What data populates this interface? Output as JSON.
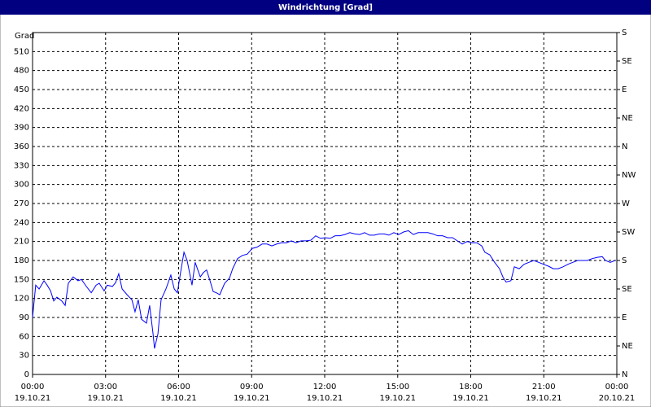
{
  "chart_data": {
    "type": "line",
    "title": "Windrichtung [Grad]",
    "y_label": "Grad",
    "color": "#0000ff",
    "grid": true,
    "xlim": [
      0,
      24
    ],
    "xticks": [
      {
        "value": 0,
        "label": "00:00"
      },
      {
        "value": 3,
        "label": "03:00"
      },
      {
        "value": 6,
        "label": "06:00"
      },
      {
        "value": 9,
        "label": "09:00"
      },
      {
        "value": 12,
        "label": "12:00"
      },
      {
        "value": 15,
        "label": "15:00"
      },
      {
        "value": 18,
        "label": "18:00"
      },
      {
        "value": 21,
        "label": "21:00"
      },
      {
        "value": 24,
        "label": "00:00"
      }
    ],
    "xtick_dates": [
      "19.10.21",
      "19.10.21",
      "19.10.21",
      "19.10.21",
      "19.10.21",
      "19.10.21",
      "19.10.21",
      "19.10.21",
      "20.10.21"
    ],
    "ylim": [
      0,
      540
    ],
    "yticks": [
      0,
      30,
      60,
      90,
      120,
      150,
      180,
      210,
      240,
      270,
      300,
      330,
      360,
      390,
      420,
      450,
      480,
      510
    ],
    "y2lim": [
      0,
      540
    ],
    "y2ticks": [
      {
        "value": 0,
        "label": "N"
      },
      {
        "value": 45,
        "label": "NE"
      },
      {
        "value": 90,
        "label": "E"
      },
      {
        "value": 135,
        "label": "SE"
      },
      {
        "value": 180,
        "label": "S"
      },
      {
        "value": 225,
        "label": "SW"
      },
      {
        "value": 270,
        "label": "W"
      },
      {
        "value": 315,
        "label": "NW"
      },
      {
        "value": 360,
        "label": "N"
      },
      {
        "value": 405,
        "label": "NE"
      },
      {
        "value": 450,
        "label": "E"
      },
      {
        "value": 495,
        "label": "SE"
      },
      {
        "value": 540,
        "label": "S"
      }
    ],
    "x": [
      0,
      0.13,
      0.27,
      0.47,
      0.6,
      0.74,
      0.87,
      1.0,
      1.2,
      1.34,
      1.47,
      1.67,
      1.87,
      2.01,
      2.21,
      2.41,
      2.61,
      2.74,
      2.94,
      3.07,
      3.28,
      3.41,
      3.54,
      3.68,
      3.88,
      4.08,
      4.21,
      4.34,
      4.48,
      4.68,
      4.81,
      4.95,
      5.01,
      5.15,
      5.28,
      5.48,
      5.68,
      5.82,
      5.95,
      6.08,
      6.22,
      6.35,
      6.55,
      6.68,
      6.89,
      7.02,
      7.15,
      7.29,
      7.42,
      7.55,
      7.69,
      7.89,
      8.09,
      8.22,
      8.42,
      8.62,
      8.82,
      9.02,
      9.22,
      9.43,
      9.63,
      9.83,
      10.03,
      10.23,
      10.43,
      10.63,
      10.83,
      11.03,
      11.23,
      11.43,
      11.63,
      11.83,
      12.03,
      12.23,
      12.43,
      12.63,
      12.83,
      13.03,
      13.24,
      13.44,
      13.64,
      13.84,
      14.04,
      14.24,
      14.44,
      14.64,
      14.84,
      15.04,
      15.24,
      15.44,
      15.64,
      15.84,
      16.04,
      16.24,
      16.44,
      16.64,
      16.84,
      17.05,
      17.25,
      17.45,
      17.65,
      17.85,
      18.05,
      18.25,
      18.45,
      18.58,
      18.78,
      18.98,
      19.18,
      19.32,
      19.45,
      19.65,
      19.79,
      19.99,
      20.19,
      20.39,
      20.59,
      20.79,
      20.99,
      21.19,
      21.39,
      21.59,
      21.79,
      21.99,
      22.19,
      22.39,
      22.59,
      22.79,
      22.99,
      23.2,
      23.4,
      23.53,
      23.73,
      23.93
    ],
    "values": [
      90,
      141,
      135,
      148,
      141,
      132,
      116,
      122,
      116,
      109,
      144,
      154,
      148,
      150,
      139,
      129,
      141,
      144,
      132,
      141,
      139,
      145,
      159,
      135,
      126,
      118,
      99,
      118,
      87,
      81,
      109,
      64,
      41,
      64,
      118,
      135,
      157,
      135,
      129,
      161,
      193,
      180,
      141,
      177,
      154,
      161,
      165,
      148,
      131,
      129,
      126,
      144,
      152,
      167,
      183,
      188,
      190,
      199,
      201,
      206,
      206,
      203,
      206,
      208,
      208,
      211,
      208,
      211,
      211,
      212,
      219,
      215,
      216,
      215,
      219,
      219,
      221,
      224,
      222,
      221,
      224,
      220,
      220,
      222,
      222,
      220,
      224,
      221,
      225,
      227,
      221,
      224,
      224,
      224,
      222,
      219,
      219,
      216,
      216,
      211,
      206,
      210,
      208,
      208,
      203,
      193,
      189,
      177,
      167,
      154,
      146,
      148,
      170,
      167,
      174,
      177,
      180,
      177,
      174,
      171,
      167,
      167,
      170,
      174,
      177,
      180,
      180,
      180,
      183,
      185,
      186,
      180,
      177,
      180
    ]
  }
}
